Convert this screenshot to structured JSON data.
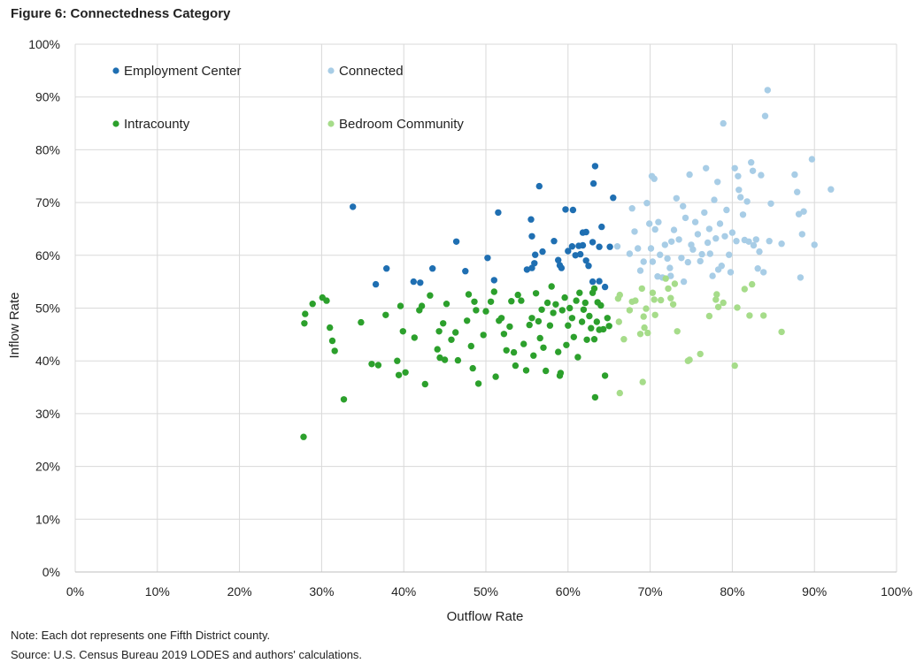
{
  "figure": {
    "title": "Figure 6: Connectedness  Category",
    "note": "Note: Each dot represents one Fifth District county.",
    "source": "Source: U.S. Census Bureau 2019 LODES and authors' calculations."
  },
  "chart_data": {
    "type": "scatter",
    "title": "Figure 6: Connectedness  Category",
    "xlabel": "Outflow Rate",
    "ylabel": "Inflow Rate",
    "xlim": [
      0,
      100
    ],
    "ylim": [
      0,
      100
    ],
    "x_ticks": [
      "0%",
      "10%",
      "20%",
      "30%",
      "40%",
      "50%",
      "60%",
      "70%",
      "80%",
      "90%",
      "100%"
    ],
    "y_ticks": [
      "0%",
      "10%",
      "20%",
      "30%",
      "40%",
      "50%",
      "60%",
      "70%",
      "80%",
      "90%",
      "100%"
    ],
    "grid": true,
    "legend_position": "top-left inside",
    "series": [
      {
        "name": "Employment Center",
        "color": "#1f6fb2",
        "points": [
          [
            33.8,
            69.2
          ],
          [
            36.6,
            54.5
          ],
          [
            37.9,
            57.5
          ],
          [
            41.2,
            55.0
          ],
          [
            42.0,
            54.8
          ],
          [
            43.5,
            57.5
          ],
          [
            46.4,
            62.6
          ],
          [
            47.5,
            57.0
          ],
          [
            50.2,
            59.5
          ],
          [
            51.0,
            55.3
          ],
          [
            51.5,
            68.1
          ],
          [
            55.0,
            57.3
          ],
          [
            55.5,
            66.8
          ],
          [
            55.6,
            63.6
          ],
          [
            55.6,
            57.6
          ],
          [
            55.9,
            58.5
          ],
          [
            56.0,
            60.1
          ],
          [
            56.5,
            73.1
          ],
          [
            56.9,
            60.7
          ],
          [
            58.3,
            62.7
          ],
          [
            58.8,
            59.1
          ],
          [
            59.0,
            58.1
          ],
          [
            59.2,
            57.6
          ],
          [
            59.7,
            68.7
          ],
          [
            60.0,
            60.8
          ],
          [
            60.5,
            61.7
          ],
          [
            60.6,
            68.6
          ],
          [
            60.9,
            60.0
          ],
          [
            61.3,
            61.8
          ],
          [
            61.5,
            60.2
          ],
          [
            61.8,
            61.9
          ],
          [
            61.8,
            64.3
          ],
          [
            62.2,
            64.4
          ],
          [
            62.2,
            59.0
          ],
          [
            62.5,
            58.0
          ],
          [
            63.0,
            55.0
          ],
          [
            63.0,
            62.5
          ],
          [
            63.1,
            73.6
          ],
          [
            63.3,
            76.9
          ],
          [
            63.8,
            61.6
          ],
          [
            64.1,
            65.4
          ],
          [
            64.5,
            54.0
          ],
          [
            65.1,
            61.6
          ],
          [
            65.5,
            70.9
          ],
          [
            63.8,
            55.1
          ]
        ]
      },
      {
        "name": "Connected",
        "color": "#a8cde6",
        "points": [
          [
            66.0,
            61.7
          ],
          [
            67.5,
            60.3
          ],
          [
            67.8,
            68.9
          ],
          [
            68.1,
            64.5
          ],
          [
            68.5,
            61.3
          ],
          [
            68.8,
            57.1
          ],
          [
            69.2,
            58.8
          ],
          [
            69.6,
            69.9
          ],
          [
            69.9,
            66.0
          ],
          [
            70.1,
            61.3
          ],
          [
            70.2,
            75.0
          ],
          [
            70.3,
            58.8
          ],
          [
            70.5,
            74.5
          ],
          [
            70.6,
            64.9
          ],
          [
            70.9,
            56.0
          ],
          [
            71.0,
            66.3
          ],
          [
            71.2,
            60.1
          ],
          [
            71.5,
            55.8
          ],
          [
            71.8,
            62.0
          ],
          [
            72.1,
            59.4
          ],
          [
            72.4,
            57.6
          ],
          [
            72.5,
            56.1
          ],
          [
            72.6,
            62.6
          ],
          [
            72.9,
            64.8
          ],
          [
            73.2,
            70.8
          ],
          [
            73.5,
            63.0
          ],
          [
            73.8,
            59.5
          ],
          [
            74.0,
            69.3
          ],
          [
            74.1,
            55.0
          ],
          [
            74.3,
            67.1
          ],
          [
            74.6,
            58.7
          ],
          [
            74.8,
            75.3
          ],
          [
            75.0,
            62.0
          ],
          [
            75.2,
            61.1
          ],
          [
            75.5,
            66.3
          ],
          [
            75.8,
            64.0
          ],
          [
            76.1,
            58.9
          ],
          [
            76.3,
            60.2
          ],
          [
            76.6,
            68.1
          ],
          [
            76.8,
            76.5
          ],
          [
            77.0,
            62.4
          ],
          [
            77.2,
            65.0
          ],
          [
            77.3,
            60.3
          ],
          [
            77.6,
            56.1
          ],
          [
            77.8,
            70.5
          ],
          [
            78.0,
            63.2
          ],
          [
            78.2,
            73.9
          ],
          [
            78.3,
            57.3
          ],
          [
            78.5,
            66.0
          ],
          [
            78.7,
            58.0
          ],
          [
            78.9,
            85.0
          ],
          [
            79.1,
            63.6
          ],
          [
            79.3,
            68.6
          ],
          [
            79.6,
            60.1
          ],
          [
            79.8,
            56.8
          ],
          [
            80.0,
            64.3
          ],
          [
            80.3,
            76.5
          ],
          [
            80.5,
            62.7
          ],
          [
            80.7,
            75.0
          ],
          [
            80.8,
            72.4
          ],
          [
            81.0,
            71.0
          ],
          [
            81.3,
            67.7
          ],
          [
            81.5,
            62.9
          ],
          [
            81.8,
            70.2
          ],
          [
            82.0,
            62.6
          ],
          [
            82.3,
            77.6
          ],
          [
            82.5,
            76.0
          ],
          [
            82.6,
            61.9
          ],
          [
            82.9,
            63.0
          ],
          [
            83.1,
            57.5
          ],
          [
            83.3,
            60.7
          ],
          [
            83.5,
            75.2
          ],
          [
            83.8,
            56.8
          ],
          [
            84.0,
            86.4
          ],
          [
            84.3,
            91.3
          ],
          [
            84.5,
            62.7
          ],
          [
            84.7,
            69.8
          ],
          [
            86.0,
            62.2
          ],
          [
            87.6,
            75.3
          ],
          [
            87.9,
            72.0
          ],
          [
            88.1,
            67.8
          ],
          [
            88.3,
            55.8
          ],
          [
            88.5,
            64.0
          ],
          [
            88.7,
            68.3
          ],
          [
            89.7,
            78.2
          ],
          [
            90.0,
            62.0
          ],
          [
            92.0,
            72.5
          ]
        ]
      },
      {
        "name": "Intracounty",
        "color": "#2ca02c",
        "points": [
          [
            27.8,
            25.6
          ],
          [
            27.9,
            47.1
          ],
          [
            28.0,
            48.9
          ],
          [
            28.9,
            50.8
          ],
          [
            30.1,
            52.0
          ],
          [
            30.6,
            51.4
          ],
          [
            31.0,
            46.3
          ],
          [
            31.3,
            43.8
          ],
          [
            31.6,
            41.9
          ],
          [
            32.7,
            32.7
          ],
          [
            34.8,
            47.3
          ],
          [
            36.1,
            39.4
          ],
          [
            36.9,
            39.2
          ],
          [
            37.8,
            48.7
          ],
          [
            39.2,
            40.0
          ],
          [
            39.4,
            37.3
          ],
          [
            39.6,
            50.4
          ],
          [
            39.9,
            45.6
          ],
          [
            40.2,
            37.8
          ],
          [
            41.3,
            44.4
          ],
          [
            41.9,
            49.6
          ],
          [
            42.2,
            50.4
          ],
          [
            42.6,
            35.6
          ],
          [
            43.2,
            52.4
          ],
          [
            44.1,
            42.2
          ],
          [
            44.3,
            45.6
          ],
          [
            44.4,
            40.6
          ],
          [
            44.8,
            47.1
          ],
          [
            45.0,
            40.2
          ],
          [
            45.2,
            50.8
          ],
          [
            45.8,
            44.0
          ],
          [
            46.3,
            45.4
          ],
          [
            46.6,
            40.1
          ],
          [
            47.7,
            47.6
          ],
          [
            47.9,
            52.6
          ],
          [
            48.2,
            42.8
          ],
          [
            48.4,
            38.6
          ],
          [
            48.6,
            51.2
          ],
          [
            48.8,
            49.6
          ],
          [
            49.1,
            35.7
          ],
          [
            49.7,
            44.9
          ],
          [
            50.0,
            49.4
          ],
          [
            50.6,
            51.2
          ],
          [
            51.0,
            53.1
          ],
          [
            51.2,
            37.0
          ],
          [
            51.6,
            47.6
          ],
          [
            51.9,
            48.1
          ],
          [
            52.2,
            45.1
          ],
          [
            52.9,
            46.5
          ],
          [
            53.1,
            51.3
          ],
          [
            53.4,
            41.6
          ],
          [
            53.6,
            39.1
          ],
          [
            53.9,
            52.5
          ],
          [
            54.3,
            51.4
          ],
          [
            54.6,
            43.2
          ],
          [
            54.9,
            38.2
          ],
          [
            55.3,
            46.8
          ],
          [
            55.6,
            48.1
          ],
          [
            55.8,
            41.0
          ],
          [
            56.1,
            52.8
          ],
          [
            56.4,
            47.5
          ],
          [
            56.6,
            44.3
          ],
          [
            56.8,
            49.7
          ],
          [
            57.0,
            42.5
          ],
          [
            57.3,
            38.1
          ],
          [
            57.5,
            51.0
          ],
          [
            57.8,
            46.7
          ],
          [
            58.0,
            54.1
          ],
          [
            58.2,
            49.1
          ],
          [
            58.5,
            50.7
          ],
          [
            58.8,
            41.7
          ],
          [
            59.1,
            37.7
          ],
          [
            59.3,
            49.6
          ],
          [
            59.6,
            52.0
          ],
          [
            59.8,
            43.0
          ],
          [
            60.0,
            46.7
          ],
          [
            60.2,
            50.0
          ],
          [
            60.5,
            48.1
          ],
          [
            60.7,
            44.5
          ],
          [
            61.0,
            51.4
          ],
          [
            61.2,
            40.7
          ],
          [
            61.4,
            52.9
          ],
          [
            61.7,
            47.4
          ],
          [
            61.9,
            49.7
          ],
          [
            62.1,
            51.0
          ],
          [
            62.3,
            44.0
          ],
          [
            62.6,
            48.5
          ],
          [
            62.8,
            46.2
          ],
          [
            63.0,
            52.9
          ],
          [
            63.2,
            44.1
          ],
          [
            63.3,
            33.1
          ],
          [
            63.5,
            47.4
          ],
          [
            63.6,
            51.1
          ],
          [
            63.8,
            45.9
          ],
          [
            64.0,
            50.5
          ],
          [
            64.3,
            46.0
          ],
          [
            64.5,
            37.2
          ],
          [
            64.8,
            48.1
          ],
          [
            65.0,
            46.6
          ],
          [
            63.2,
            53.7
          ],
          [
            59.0,
            37.2
          ],
          [
            52.5,
            42.0
          ]
        ]
      },
      {
        "name": "Bedroom Community",
        "color": "#a6dc8a",
        "points": [
          [
            66.1,
            51.8
          ],
          [
            66.2,
            47.4
          ],
          [
            66.3,
            33.9
          ],
          [
            66.8,
            44.1
          ],
          [
            67.5,
            49.6
          ],
          [
            67.8,
            51.2
          ],
          [
            68.2,
            51.4
          ],
          [
            68.8,
            45.1
          ],
          [
            69.0,
            53.7
          ],
          [
            69.1,
            36.0
          ],
          [
            69.2,
            48.4
          ],
          [
            69.3,
            46.3
          ],
          [
            69.5,
            49.9
          ],
          [
            69.7,
            45.3
          ],
          [
            70.3,
            52.9
          ],
          [
            70.5,
            51.6
          ],
          [
            70.6,
            48.7
          ],
          [
            71.3,
            51.5
          ],
          [
            71.9,
            55.6
          ],
          [
            72.2,
            53.7
          ],
          [
            72.5,
            51.9
          ],
          [
            72.8,
            50.7
          ],
          [
            73.0,
            54.6
          ],
          [
            73.3,
            45.6
          ],
          [
            74.6,
            40.0
          ],
          [
            74.8,
            40.2
          ],
          [
            76.1,
            41.3
          ],
          [
            77.2,
            48.5
          ],
          [
            78.0,
            51.6
          ],
          [
            78.1,
            52.6
          ],
          [
            78.3,
            50.2
          ],
          [
            78.9,
            51.0
          ],
          [
            80.3,
            39.1
          ],
          [
            80.6,
            50.1
          ],
          [
            81.5,
            53.6
          ],
          [
            82.1,
            48.6
          ],
          [
            83.8,
            48.6
          ],
          [
            86.0,
            45.5
          ],
          [
            66.3,
            52.5
          ],
          [
            82.4,
            54.5
          ]
        ]
      }
    ]
  }
}
